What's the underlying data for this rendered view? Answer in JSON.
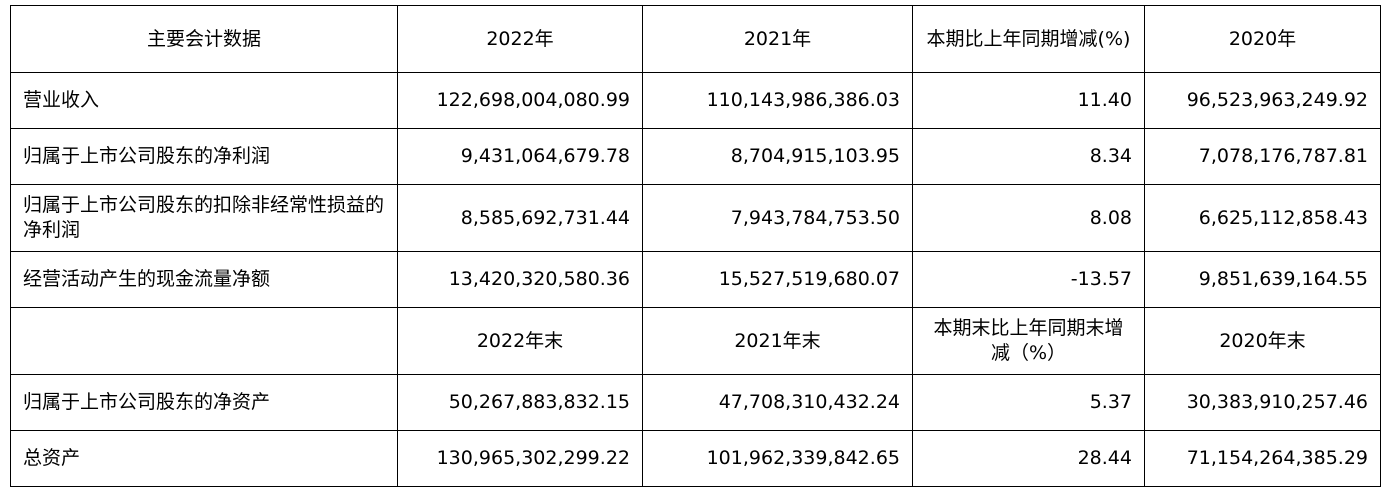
{
  "table": {
    "header1": [
      "主要会计数据",
      "2022年",
      "2021年",
      "本期比上年同期增减(%)",
      "2020年"
    ],
    "rows1": [
      {
        "label": "营业收入",
        "v2022": "122,698,004,080.99",
        "v2021": "110,143,986,386.03",
        "change": "11.40",
        "v2020": "96,523,963,249.92"
      },
      {
        "label": "归属于上市公司股东的净利润",
        "v2022": "9,431,064,679.78",
        "v2021": "8,704,915,103.95",
        "change": "8.34",
        "v2020": "7,078,176,787.81"
      },
      {
        "label": "归属于上市公司股东的扣除非经常性损益的净利润",
        "v2022": "8,585,692,731.44",
        "v2021": "7,943,784,753.50",
        "change": "8.08",
        "v2020": "6,625,112,858.43"
      },
      {
        "label": "经营活动产生的现金流量净额",
        "v2022": "13,420,320,580.36",
        "v2021": "15,527,519,680.07",
        "change": "-13.57",
        "v2020": "9,851,639,164.55"
      }
    ],
    "header2": [
      "",
      "2022年末",
      "2021年末",
      "本期末比上年同期末增减（%）",
      "2020年末"
    ],
    "rows2": [
      {
        "label": "归属于上市公司股东的净资产",
        "v2022": "50,267,883,832.15",
        "v2021": "47,708,310,432.24",
        "change": "5.37",
        "v2020": "30,383,910,257.46"
      },
      {
        "label": "总资产",
        "v2022": "130,965,302,299.22",
        "v2021": "101,962,339,842.65",
        "change": "28.44",
        "v2020": "71,154,264,385.29"
      }
    ]
  }
}
